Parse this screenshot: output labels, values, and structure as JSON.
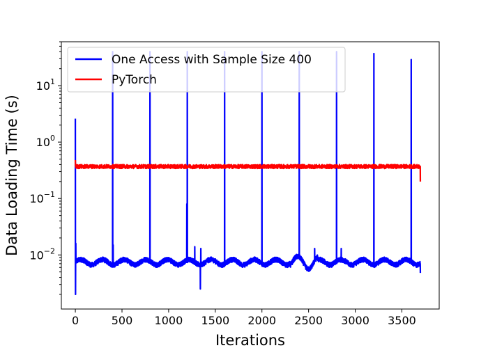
{
  "chart_data": {
    "type": "line",
    "title": "",
    "xlabel": "Iterations",
    "ylabel": "Data Loading Time (s)",
    "yscale": "log",
    "xlim": [
      -150,
      3900
    ],
    "ylim": [
      0.0011,
      60
    ],
    "x_ticks": [
      0,
      500,
      1000,
      1500,
      2000,
      2500,
      3000,
      3500
    ],
    "y_ticks": [
      {
        "value": 0.01,
        "base": "10",
        "exp": "−2"
      },
      {
        "value": 0.1,
        "base": "10",
        "exp": "−1"
      },
      {
        "value": 1,
        "base": "10",
        "exp": "0"
      },
      {
        "value": 10,
        "base": "10",
        "exp": "1"
      }
    ],
    "legend_position": "top-left",
    "grid": false,
    "series": [
      {
        "name": "One Access with Sample Size 400",
        "color": "#0000ff",
        "baseline": 0.0075,
        "length": 3700,
        "spikes": [
          {
            "x": 0,
            "y": 2.6
          },
          {
            "x": 400,
            "y": 40
          },
          {
            "x": 800,
            "y": 40
          },
          {
            "x": 1200,
            "y": 40
          },
          {
            "x": 1600,
            "y": 40
          },
          {
            "x": 2000,
            "y": 40
          },
          {
            "x": 2400,
            "y": 40
          },
          {
            "x": 2800,
            "y": 40
          },
          {
            "x": 3200,
            "y": 37
          },
          {
            "x": 3600,
            "y": 29
          }
        ],
        "dips": [
          {
            "x": 2,
            "y": 0.002
          },
          {
            "x": 1340,
            "y": 0.0025
          },
          {
            "x": 3698,
            "y": 0.0048
          }
        ],
        "minor_peaks": [
          {
            "x": 5,
            "y": 0.016
          },
          {
            "x": 405,
            "y": 0.015
          },
          {
            "x": 1195,
            "y": 0.08
          },
          {
            "x": 1280,
            "y": 0.014
          },
          {
            "x": 1345,
            "y": 0.013
          },
          {
            "x": 2565,
            "y": 0.013
          },
          {
            "x": 2850,
            "y": 0.013
          }
        ]
      },
      {
        "name": "PyTorch",
        "color": "#ff0000",
        "baseline": 0.37,
        "length": 3700,
        "start_value": 0.48,
        "end_value": 0.2
      }
    ]
  }
}
